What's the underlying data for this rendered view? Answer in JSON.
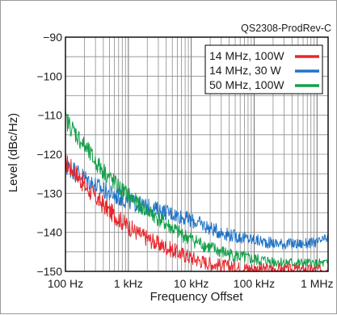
{
  "chart_data": {
    "type": "line",
    "title": "QS2308-ProdRev-C",
    "xlabel": "Frequency Offset",
    "ylabel": "Level (dBc/Hz)",
    "x_scale": "log",
    "xlim": [
      100,
      1500000
    ],
    "ylim": [
      -150,
      -90
    ],
    "x_ticks": [
      {
        "value": 100,
        "label": "100 Hz"
      },
      {
        "value": 1000,
        "label": "1 kHz"
      },
      {
        "value": 10000,
        "label": "10 kHz"
      },
      {
        "value": 100000,
        "label": "100 kHz"
      },
      {
        "value": 1000000,
        "label": "1 MHz"
      }
    ],
    "y_ticks": [
      {
        "value": -90,
        "label": "−90"
      },
      {
        "value": -100,
        "label": "−100"
      },
      {
        "value": -110,
        "label": "−110"
      },
      {
        "value": -120,
        "label": "−120"
      },
      {
        "value": -130,
        "label": "−130"
      },
      {
        "value": -140,
        "label": "−140"
      },
      {
        "value": -150,
        "label": "−150"
      }
    ],
    "grid": true,
    "legend_position": "top-right",
    "series": [
      {
        "name": "14 MHz, 100W",
        "color": "#e8262c",
        "x": [
          100,
          150,
          200,
          300,
          500,
          700,
          1000,
          1500,
          2000,
          3000,
          5000,
          7000,
          10000,
          15000,
          20000,
          30000,
          50000,
          100000,
          200000,
          500000,
          1000000,
          1500000
        ],
        "y": [
          -122,
          -125,
          -128,
          -131,
          -134.5,
          -136.5,
          -138.5,
          -140.5,
          -141.5,
          -143,
          -144.5,
          -145.5,
          -146.5,
          -147.5,
          -148,
          -148.5,
          -149,
          -149.3,
          -149.5,
          -149.5,
          -149.5,
          -149.5
        ]
      },
      {
        "name": "14 MHz, 30 W",
        "color": "#1f74c8",
        "x": [
          100,
          150,
          200,
          300,
          500,
          700,
          1000,
          1500,
          2000,
          3000,
          5000,
          7000,
          10000,
          15000,
          20000,
          30000,
          50000,
          100000,
          200000,
          500000,
          1000000,
          1500000
        ],
        "y": [
          -123,
          -124.5,
          -126,
          -128,
          -130,
          -131,
          -132,
          -133,
          -133.5,
          -134.3,
          -135.2,
          -136,
          -137,
          -138,
          -139,
          -140,
          -141,
          -142,
          -142.8,
          -143,
          -142.6,
          -141.5
        ]
      },
      {
        "name": "50 MHz, 100W",
        "color": "#14a04b",
        "x": [
          100,
          150,
          200,
          300,
          500,
          700,
          1000,
          1500,
          2000,
          3000,
          5000,
          7000,
          10000,
          15000,
          20000,
          30000,
          50000,
          100000,
          200000,
          500000,
          1000000,
          1500000
        ],
        "y": [
          -111,
          -115,
          -118,
          -122,
          -126,
          -128.5,
          -130.5,
          -133,
          -134.5,
          -136.5,
          -139,
          -140.5,
          -141.8,
          -143,
          -144,
          -145,
          -146,
          -147,
          -147.5,
          -148,
          -148,
          -148
        ]
      }
    ]
  }
}
